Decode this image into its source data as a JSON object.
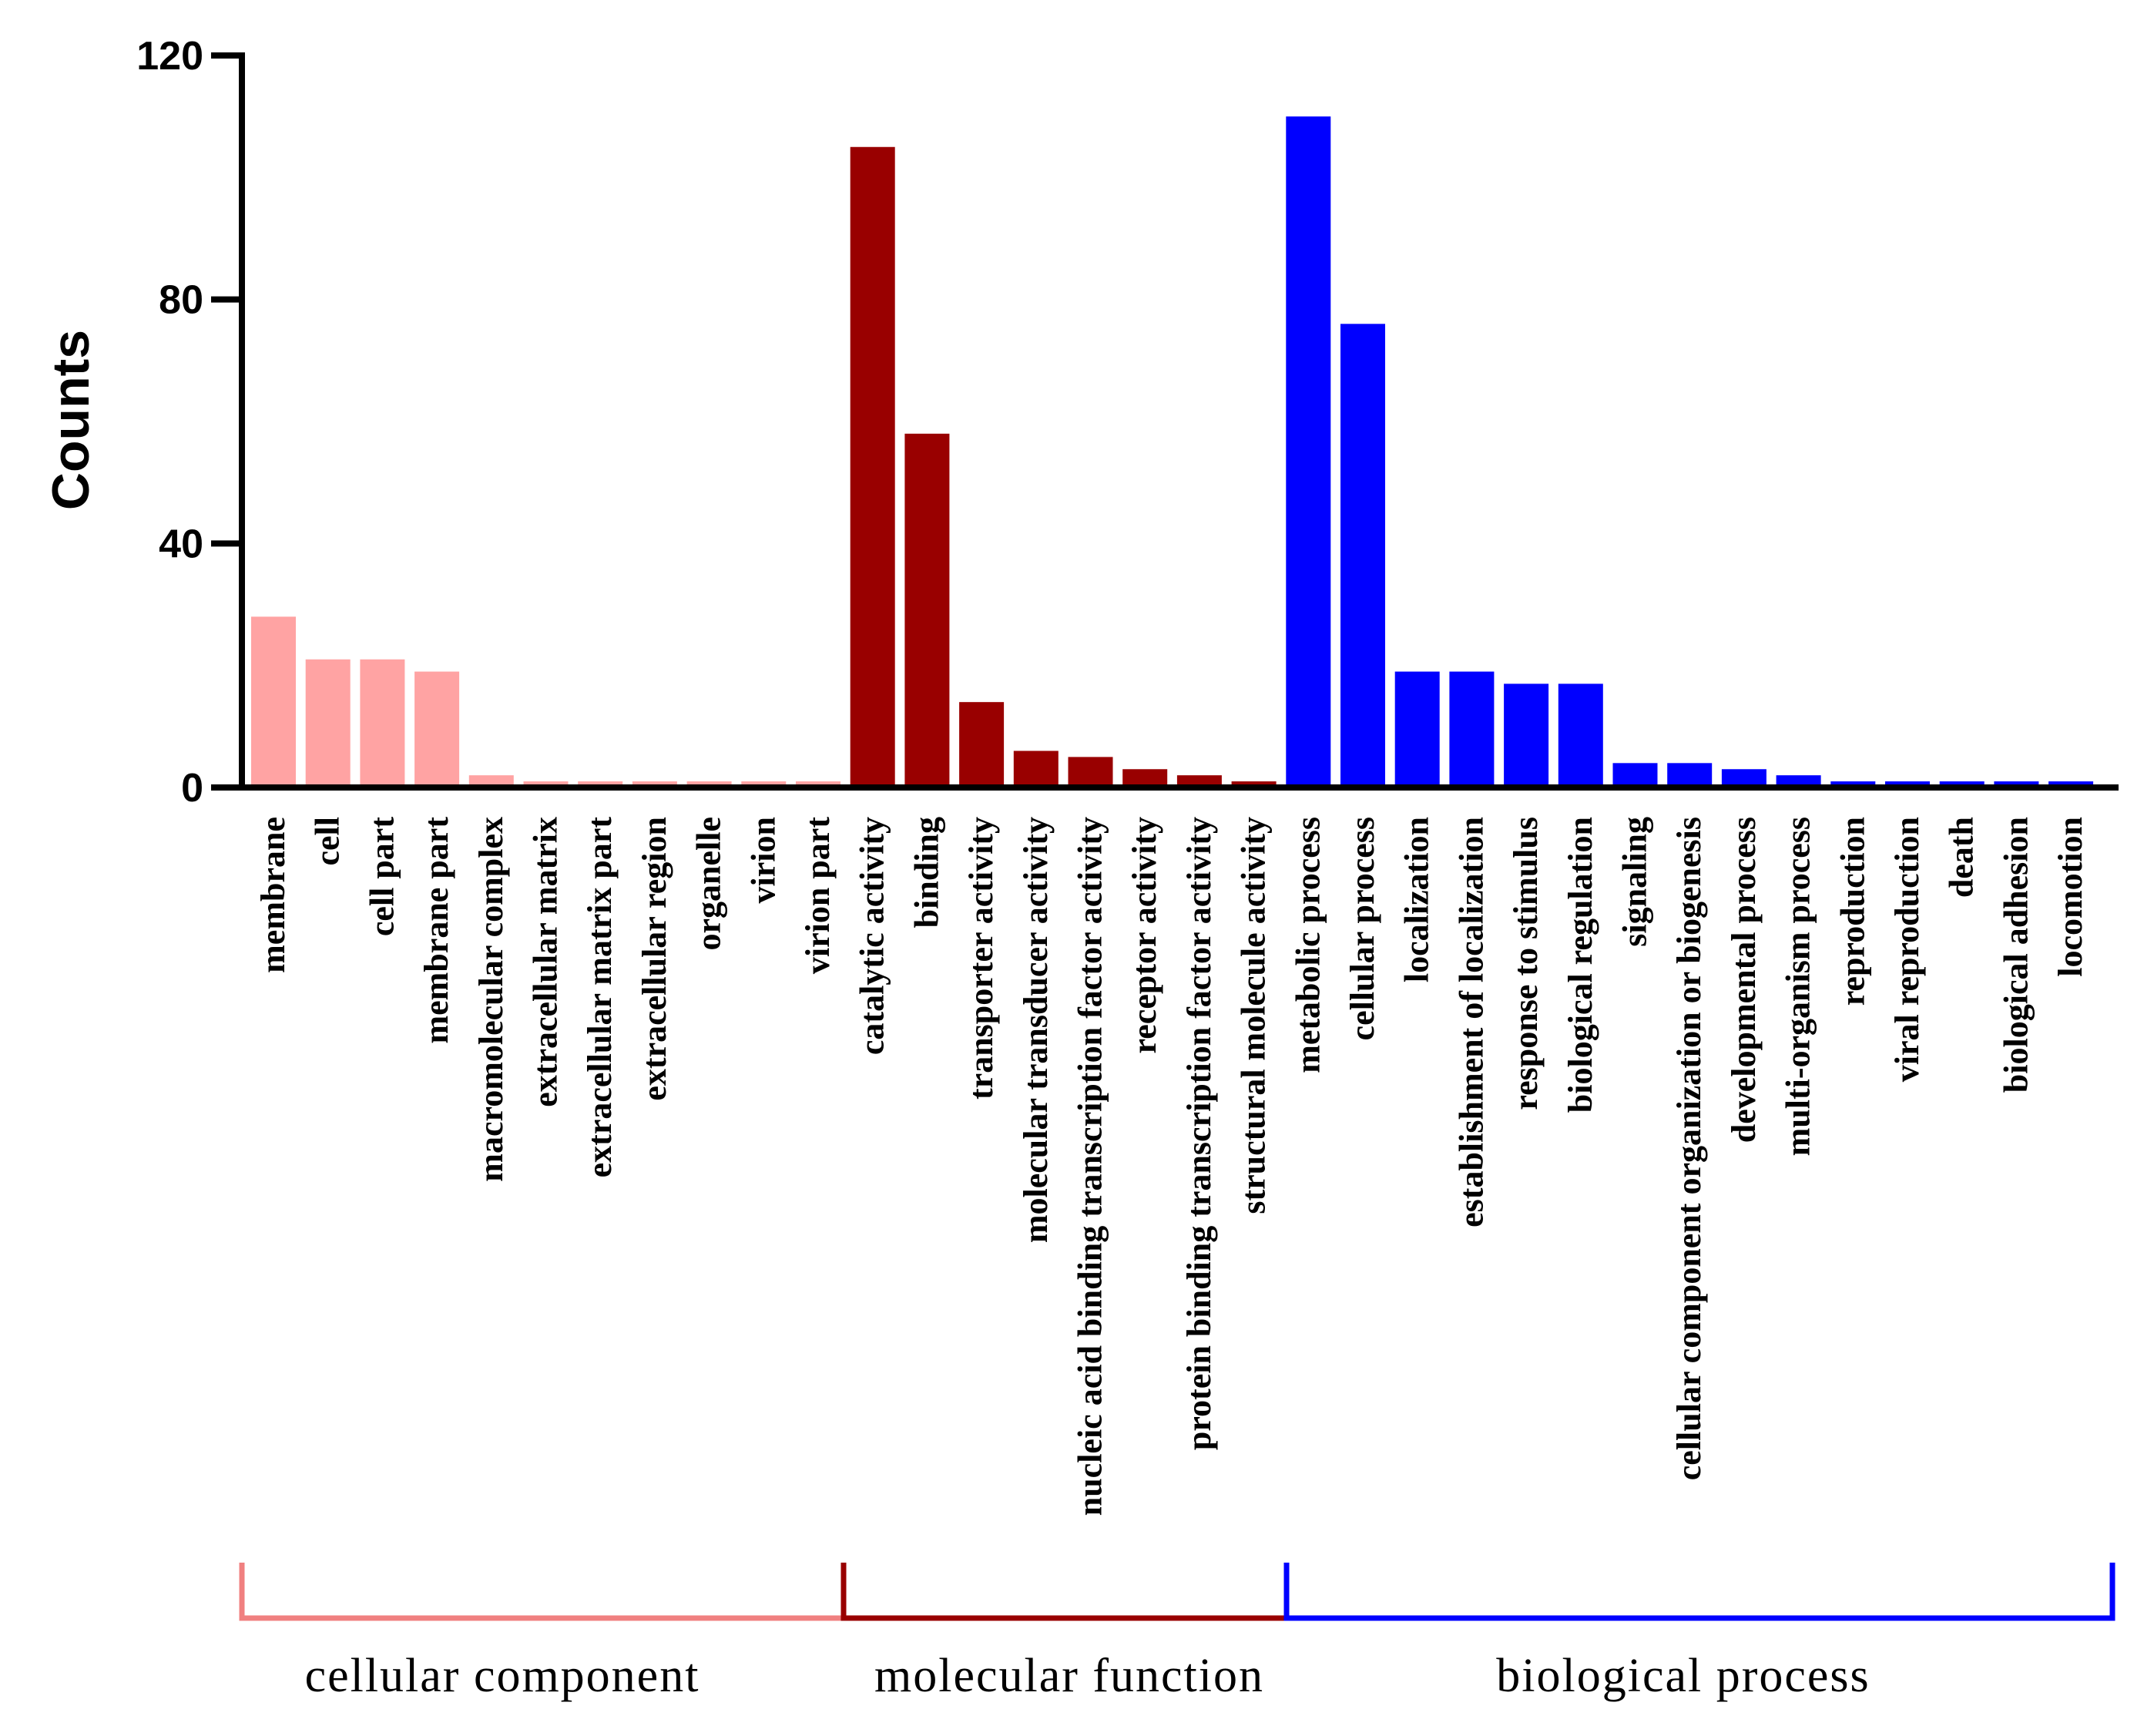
{
  "chart_data": {
    "type": "bar",
    "title": "",
    "xlabel": "",
    "ylabel": "Counts",
    "ylim": [
      0,
      120
    ],
    "yticks": [
      0,
      40,
      80,
      120
    ],
    "groups": [
      {
        "name": "cellular component",
        "color": "#FFA3A3",
        "bracket_color": "#F08080",
        "categories": [
          "membrane",
          "cell",
          "cell part",
          "membrane part",
          "macromolecular complex",
          "extracellular matrix",
          "extracellular matrix part",
          "extracellular region",
          "organelle",
          "virion",
          "virion part"
        ],
        "values": [
          28,
          21,
          21,
          19,
          2,
          1,
          1,
          1,
          1,
          1,
          1
        ]
      },
      {
        "name": "molecular function",
        "color": "#990000",
        "bracket_color": "#990000",
        "categories": [
          "catalytic activity",
          "binding",
          "transporter activity",
          "molecular transducer activity",
          "nucleic acid binding transcription factor activity",
          "receptor activity",
          "protein binding transcription factor activity",
          "structural molecule activity"
        ],
        "values": [
          105,
          58,
          14,
          6,
          5,
          3,
          2,
          1
        ]
      },
      {
        "name": "biological process",
        "color": "#0000FF",
        "bracket_color": "#0000FF",
        "categories": [
          "metabolic process",
          "cellular process",
          "localization",
          "establishment of localization",
          "response to stimulus",
          "biological regulation",
          "signaling",
          "cellular component organization or biogenesis",
          "developmental process",
          "multi-organism process",
          "reproduction",
          "viral reproduction",
          "death",
          "biological adhesion",
          "locomotion"
        ],
        "values": [
          110,
          76,
          19,
          19,
          17,
          17,
          4,
          4,
          3,
          2,
          1,
          1,
          1,
          1,
          1
        ]
      }
    ]
  }
}
